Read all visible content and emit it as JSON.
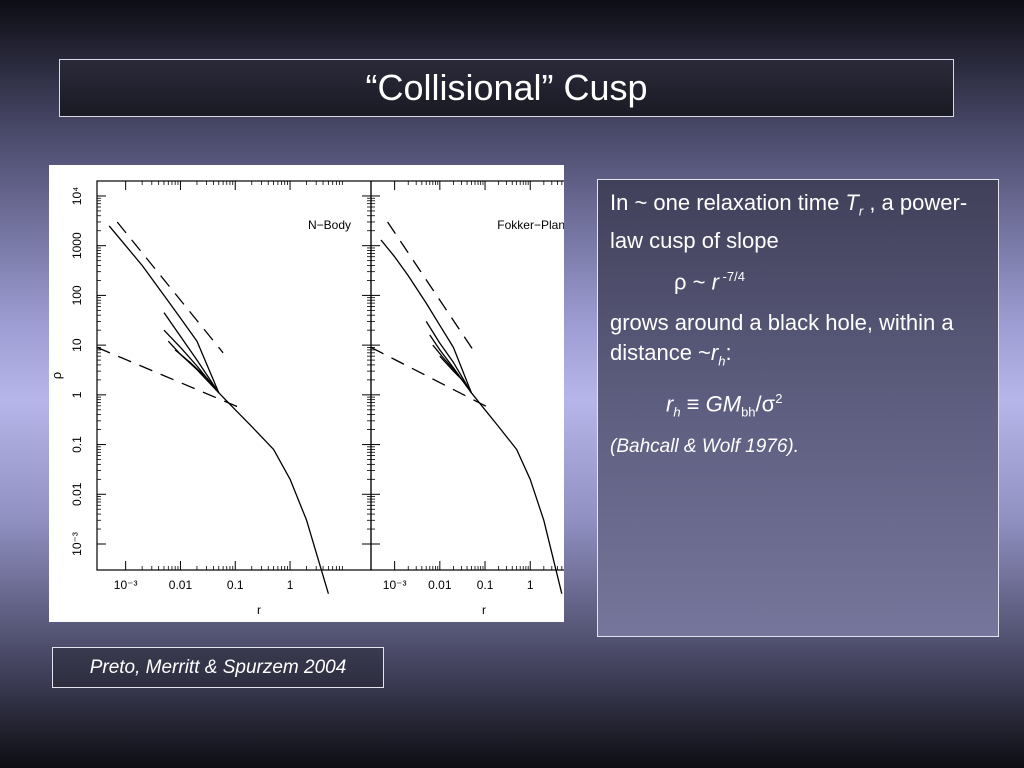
{
  "slide": {
    "title": "“Collisional” Cusp",
    "credit": "Preto, Merritt & Spurzem 2004"
  },
  "text": {
    "line1_a": "In ~ one relaxation time ",
    "line1_T": "T",
    "line1_sub": "r",
    "line1_b": " , a power-law cusp of slope",
    "formula1_a": "ρ ~ ",
    "formula1_r": "r",
    "formula1_exp": " -7/4",
    "line2_a": "grows around a black hole, within a distance ~",
    "line2_r": "r",
    "line2_sub": "h",
    "line2_b": ":",
    "formula2_r": "r",
    "formula2_sub": "h",
    "formula2_eq": " ≡ ",
    "formula2_GM": "GM",
    "formula2_bh": "bh",
    "formula2_sigma": "/σ",
    "formula2_exp": "2",
    "reference": "(Bahcall & Wolf 1976)."
  },
  "chart_data": [
    {
      "type": "line",
      "panel_label": "N−Body",
      "xlabel": "r",
      "ylabel": "ρ",
      "x_scale": "log",
      "y_scale": "log",
      "xlim": [
        0.0003,
        30
      ],
      "ylim": [
        0.0003,
        20000
      ],
      "x_ticks": [
        "10⁻³",
        "0.01",
        "0.1",
        "1"
      ],
      "y_ticks": [
        "10⁻³",
        "0.01",
        "0.1",
        "1",
        "10",
        "100",
        "1000",
        "10⁴"
      ],
      "series": [
        {
          "style": "solid",
          "x": [
            0.0005,
            0.001,
            0.002,
            0.005,
            0.01,
            0.02,
            0.05,
            0.1,
            0.2,
            0.5,
            1,
            2,
            5
          ],
          "y": [
            2500,
            1000,
            400,
            100,
            35,
            12,
            1.1,
            0.5,
            0.23,
            0.08,
            0.02,
            0.003,
            0.0001
          ]
        },
        {
          "style": "solid",
          "x": [
            0.005,
            0.01,
            0.02,
            0.05
          ],
          "y": [
            45,
            15,
            5,
            1.1
          ]
        },
        {
          "style": "solid",
          "x": [
            0.005,
            0.01,
            0.02,
            0.05
          ],
          "y": [
            20,
            9,
            3.8,
            1.1
          ]
        },
        {
          "style": "solid",
          "x": [
            0.006,
            0.01,
            0.02,
            0.05
          ],
          "y": [
            12,
            6.5,
            3.2,
            1.1
          ]
        },
        {
          "style": "solid",
          "x": [
            0.008,
            0.015,
            0.03,
            0.05
          ],
          "y": [
            8,
            4.5,
            2.2,
            1.1
          ]
        },
        {
          "style": "dashed",
          "x": [
            0.0007,
            0.06
          ],
          "y": [
            3000,
            7
          ]
        },
        {
          "style": "dashed",
          "x": [
            0.0003,
            0.15
          ],
          "y": [
            9,
            0.5
          ]
        }
      ]
    },
    {
      "type": "line",
      "panel_label": "Fokker−Planck",
      "xlabel": "r",
      "x_scale": "log",
      "y_scale": "log",
      "xlim": [
        0.0003,
        30
      ],
      "ylim": [
        0.0003,
        20000
      ],
      "x_ticks": [
        "10⁻³",
        "0.01",
        "0.1",
        "1"
      ],
      "series": [
        {
          "style": "solid",
          "x": [
            0.0005,
            0.001,
            0.002,
            0.005,
            0.01,
            0.02,
            0.05,
            0.1,
            0.2,
            0.5,
            1,
            2,
            5
          ],
          "y": [
            1300,
            600,
            250,
            70,
            25,
            9,
            1.1,
            0.5,
            0.23,
            0.08,
            0.02,
            0.003,
            0.0001
          ]
        },
        {
          "style": "solid",
          "x": [
            0.005,
            0.01,
            0.02,
            0.05
          ],
          "y": [
            30,
            11,
            4.5,
            1.1
          ]
        },
        {
          "style": "solid",
          "x": [
            0.006,
            0.01,
            0.02,
            0.05
          ],
          "y": [
            16,
            8,
            3.5,
            1.1
          ]
        },
        {
          "style": "solid",
          "x": [
            0.007,
            0.012,
            0.025,
            0.05
          ],
          "y": [
            10,
            5.5,
            2.6,
            1.1
          ]
        },
        {
          "style": "solid",
          "x": [
            0.01,
            0.02,
            0.035,
            0.05
          ],
          "y": [
            6,
            3,
            1.8,
            1.1
          ]
        },
        {
          "style": "dashed",
          "x": [
            0.0007,
            0.06
          ],
          "y": [
            3000,
            7
          ]
        },
        {
          "style": "dashed",
          "x": [
            0.0003,
            0.15
          ],
          "y": [
            9,
            0.5
          ]
        }
      ]
    }
  ]
}
